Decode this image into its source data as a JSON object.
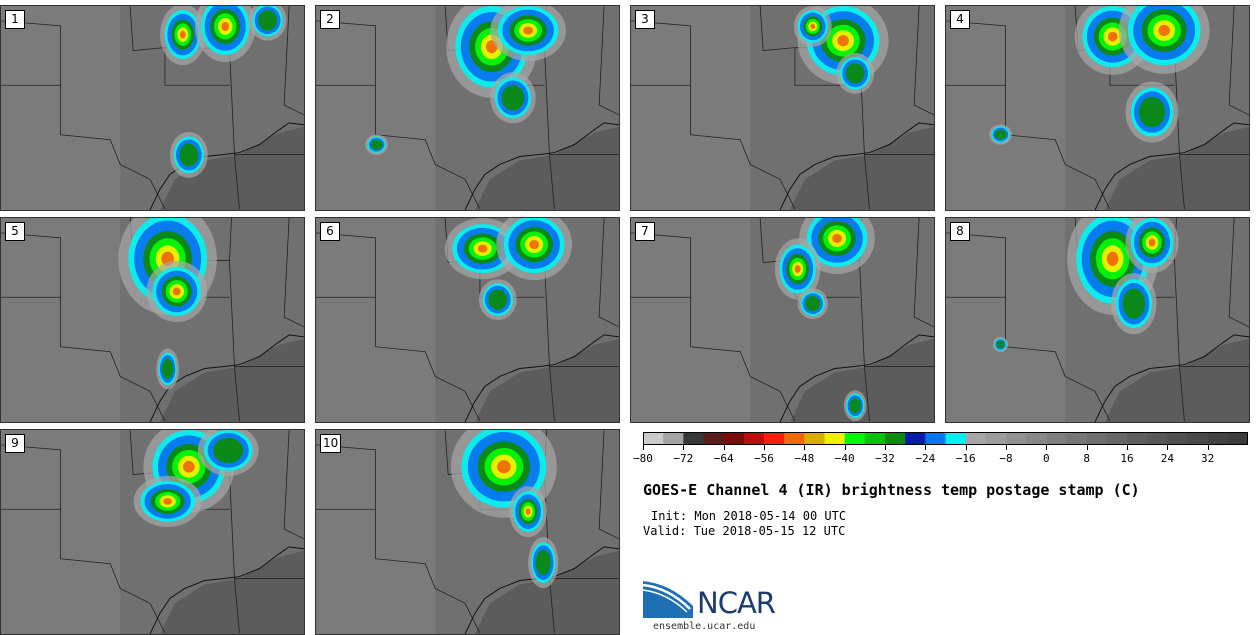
{
  "panels": [
    {
      "label": "1",
      "blobs": [
        [
          0.6,
          0.14,
          0.06,
          0.12
        ],
        [
          0.74,
          0.1,
          0.08,
          0.14
        ],
        [
          0.88,
          0.07,
          0.05,
          0.08
        ],
        [
          0.62,
          0.73,
          0.05,
          0.09
        ]
      ]
    },
    {
      "label": "2",
      "blobs": [
        [
          0.58,
          0.2,
          0.12,
          0.2
        ],
        [
          0.7,
          0.12,
          0.1,
          0.12
        ],
        [
          0.65,
          0.45,
          0.06,
          0.1
        ],
        [
          0.2,
          0.68,
          0.03,
          0.04
        ]
      ]
    },
    {
      "label": "3",
      "blobs": [
        [
          0.7,
          0.17,
          0.12,
          0.17
        ],
        [
          0.6,
          0.1,
          0.05,
          0.08
        ],
        [
          0.74,
          0.33,
          0.05,
          0.08
        ]
      ]
    },
    {
      "label": "4",
      "blobs": [
        [
          0.55,
          0.15,
          0.1,
          0.15
        ],
        [
          0.72,
          0.12,
          0.12,
          0.17
        ],
        [
          0.68,
          0.52,
          0.07,
          0.12
        ],
        [
          0.18,
          0.63,
          0.03,
          0.04
        ]
      ]
    },
    {
      "label": "5",
      "blobs": [
        [
          0.55,
          0.2,
          0.13,
          0.22
        ],
        [
          0.58,
          0.36,
          0.08,
          0.12
        ],
        [
          0.55,
          0.74,
          0.03,
          0.08
        ]
      ]
    },
    {
      "label": "6",
      "blobs": [
        [
          0.55,
          0.15,
          0.1,
          0.12
        ],
        [
          0.72,
          0.13,
          0.1,
          0.14
        ],
        [
          0.6,
          0.4,
          0.05,
          0.08
        ]
      ]
    },
    {
      "label": "7",
      "blobs": [
        [
          0.68,
          0.1,
          0.1,
          0.14
        ],
        [
          0.55,
          0.25,
          0.06,
          0.12
        ],
        [
          0.6,
          0.42,
          0.04,
          0.06
        ],
        [
          0.74,
          0.92,
          0.03,
          0.06
        ]
      ]
    },
    {
      "label": "8",
      "blobs": [
        [
          0.55,
          0.2,
          0.12,
          0.22
        ],
        [
          0.68,
          0.12,
          0.07,
          0.12
        ],
        [
          0.62,
          0.42,
          0.06,
          0.12
        ],
        [
          0.18,
          0.62,
          0.02,
          0.03
        ]
      ]
    },
    {
      "label": "9",
      "blobs": [
        [
          0.62,
          0.18,
          0.12,
          0.18
        ],
        [
          0.55,
          0.35,
          0.09,
          0.1
        ],
        [
          0.75,
          0.1,
          0.08,
          0.1
        ]
      ]
    },
    {
      "label": "10",
      "blobs": [
        [
          0.62,
          0.18,
          0.14,
          0.2
        ],
        [
          0.7,
          0.4,
          0.05,
          0.1
        ],
        [
          0.75,
          0.65,
          0.04,
          0.1
        ]
      ]
    }
  ],
  "colorbar": {
    "colors": [
      "#cbcbcb",
      "#a4a4a4",
      "#383838",
      "#5a1b1b",
      "#7a0c0c",
      "#bd0e0e",
      "#f31f10",
      "#f06a05",
      "#d9ac00",
      "#f0f000",
      "#04f806",
      "#0ac10a",
      "#0c8a0c",
      "#081caa",
      "#0a75f0",
      "#04f0f0",
      "#a7a7a7",
      "#9c9c9c",
      "#929292",
      "#888888",
      "#7f7f7f",
      "#767676",
      "#6e6e6e",
      "#666666",
      "#5e5e5e",
      "#575757",
      "#505050",
      "#494949",
      "#424242",
      "#3c3c3c"
    ],
    "tick_values": [
      -80,
      -72,
      -64,
      -56,
      -48,
      -40,
      -32,
      -24,
      -16,
      -8,
      0,
      8,
      16,
      24,
      32
    ],
    "tick_labels": [
      "−80",
      "−72",
      "−64",
      "−56",
      "−48",
      "−40",
      "−32",
      "−24",
      "−16",
      "−8",
      "0",
      "8",
      "16",
      "24",
      "32"
    ],
    "min": -80,
    "max": 40
  },
  "title": "GOES-E Channel 4 (IR) brightness temp postage stamp (C)",
  "init": "Init: Mon 2018-05-14 00 UTC",
  "valid": "Valid: Tue 2018-05-15 12 UTC",
  "logo": {
    "text": "NCAR",
    "url": "ensemble.ucar.edu",
    "color": "#1a3d6d",
    "accent": "#1f6fb5"
  }
}
